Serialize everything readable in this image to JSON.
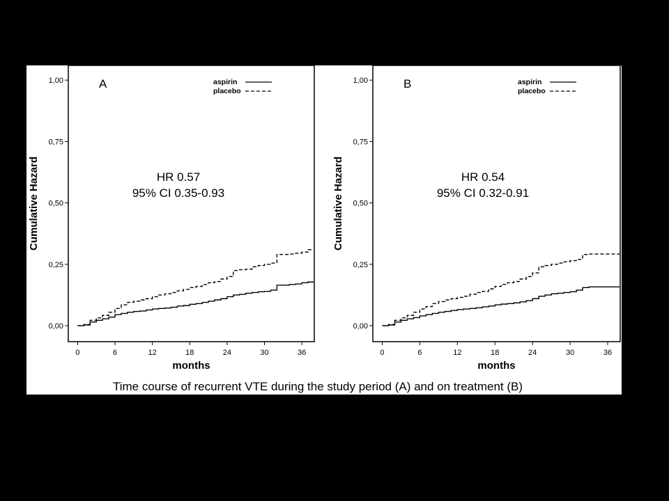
{
  "caption": "Time course of recurrent VTE during the study period (A) and on treatment (B)",
  "colors": {
    "background": "#000000",
    "panel": "#ffffff",
    "ink": "#000000"
  },
  "chart_data": [
    {
      "type": "line",
      "panel_label": "A",
      "xlabel": "months",
      "ylabel": "Cumulative Hazard",
      "xlim": [
        -1.5,
        38
      ],
      "ylim": [
        -0.065,
        1.06
      ],
      "x_ticks": [
        "0",
        "6",
        "12",
        "18",
        "24",
        "30",
        "36"
      ],
      "y_ticks": [
        "0,00",
        "0,25",
        "0,50",
        "0,75",
        "1,00"
      ],
      "annotation": [
        "HR 0.57",
        "95% CI 0.35-0.93"
      ],
      "legend_position": "top-right",
      "series": [
        {
          "name": "aspirin",
          "style": "solid",
          "x": [
            0,
            1,
            2,
            3,
            4,
            5,
            6,
            7,
            8,
            9,
            10,
            11,
            12,
            13,
            14,
            15,
            16,
            17,
            18,
            19,
            20,
            21,
            22,
            23,
            24,
            25,
            26,
            27,
            28,
            29,
            30,
            31,
            32,
            33,
            34,
            35,
            36,
            37
          ],
          "y": [
            0,
            0.003,
            0.015,
            0.022,
            0.028,
            0.035,
            0.045,
            0.05,
            0.055,
            0.058,
            0.06,
            0.064,
            0.068,
            0.07,
            0.072,
            0.075,
            0.08,
            0.082,
            0.087,
            0.09,
            0.095,
            0.1,
            0.105,
            0.11,
            0.118,
            0.125,
            0.128,
            0.132,
            0.135,
            0.138,
            0.14,
            0.145,
            0.165,
            0.165,
            0.168,
            0.17,
            0.175,
            0.178
          ]
        },
        {
          "name": "placebo",
          "style": "dashed",
          "x": [
            0,
            1,
            2,
            3,
            4,
            5,
            6,
            7,
            8,
            9,
            10,
            11,
            12,
            13,
            14,
            15,
            16,
            17,
            18,
            19,
            20,
            21,
            22,
            23,
            24,
            25,
            26,
            27,
            28,
            29,
            30,
            31,
            32,
            33,
            34,
            35,
            36,
            37
          ],
          "y": [
            0,
            0.005,
            0.022,
            0.032,
            0.042,
            0.055,
            0.07,
            0.085,
            0.095,
            0.1,
            0.105,
            0.11,
            0.118,
            0.125,
            0.13,
            0.135,
            0.142,
            0.148,
            0.155,
            0.16,
            0.168,
            0.175,
            0.18,
            0.19,
            0.2,
            0.225,
            0.228,
            0.23,
            0.24,
            0.245,
            0.25,
            0.255,
            0.29,
            0.29,
            0.292,
            0.295,
            0.3,
            0.31
          ]
        }
      ]
    },
    {
      "type": "line",
      "panel_label": "B",
      "xlabel": "months",
      "ylabel": "Cumulative Hazard",
      "xlim": [
        -1.5,
        38
      ],
      "ylim": [
        -0.065,
        1.06
      ],
      "x_ticks": [
        "0",
        "6",
        "12",
        "18",
        "24",
        "30",
        "36"
      ],
      "y_ticks": [
        "0,00",
        "0,25",
        "0,50",
        "0,75",
        "1,00"
      ],
      "annotation": [
        "HR 0.54",
        "95% CI 0.32-0.91"
      ],
      "legend_position": "top-right",
      "series": [
        {
          "name": "aspirin",
          "style": "solid",
          "x": [
            0,
            1,
            2,
            3,
            4,
            5,
            6,
            7,
            8,
            9,
            10,
            11,
            12,
            13,
            14,
            15,
            16,
            17,
            18,
            19,
            20,
            21,
            22,
            23,
            24,
            25,
            26,
            27,
            28,
            29,
            30,
            31,
            32,
            33,
            34,
            35,
            36,
            37
          ],
          "y": [
            0,
            0.003,
            0.015,
            0.022,
            0.028,
            0.033,
            0.04,
            0.045,
            0.05,
            0.055,
            0.058,
            0.062,
            0.066,
            0.068,
            0.07,
            0.073,
            0.077,
            0.08,
            0.085,
            0.088,
            0.09,
            0.093,
            0.097,
            0.102,
            0.11,
            0.12,
            0.125,
            0.13,
            0.132,
            0.135,
            0.138,
            0.145,
            0.155,
            0.158,
            0.158,
            0.158,
            0.158,
            0.158
          ]
        },
        {
          "name": "placebo",
          "style": "dashed",
          "x": [
            0,
            1,
            2,
            3,
            4,
            5,
            6,
            7,
            8,
            9,
            10,
            11,
            12,
            13,
            14,
            15,
            16,
            17,
            18,
            19,
            20,
            21,
            22,
            23,
            24,
            25,
            26,
            27,
            28,
            29,
            30,
            31,
            32,
            33,
            34,
            35,
            36,
            37
          ],
          "y": [
            0,
            0.005,
            0.022,
            0.032,
            0.042,
            0.055,
            0.068,
            0.078,
            0.09,
            0.098,
            0.105,
            0.11,
            0.115,
            0.12,
            0.128,
            0.135,
            0.14,
            0.15,
            0.16,
            0.168,
            0.175,
            0.18,
            0.19,
            0.2,
            0.215,
            0.24,
            0.245,
            0.25,
            0.255,
            0.26,
            0.265,
            0.27,
            0.29,
            0.292,
            0.292,
            0.292,
            0.292,
            0.292
          ]
        }
      ]
    }
  ]
}
